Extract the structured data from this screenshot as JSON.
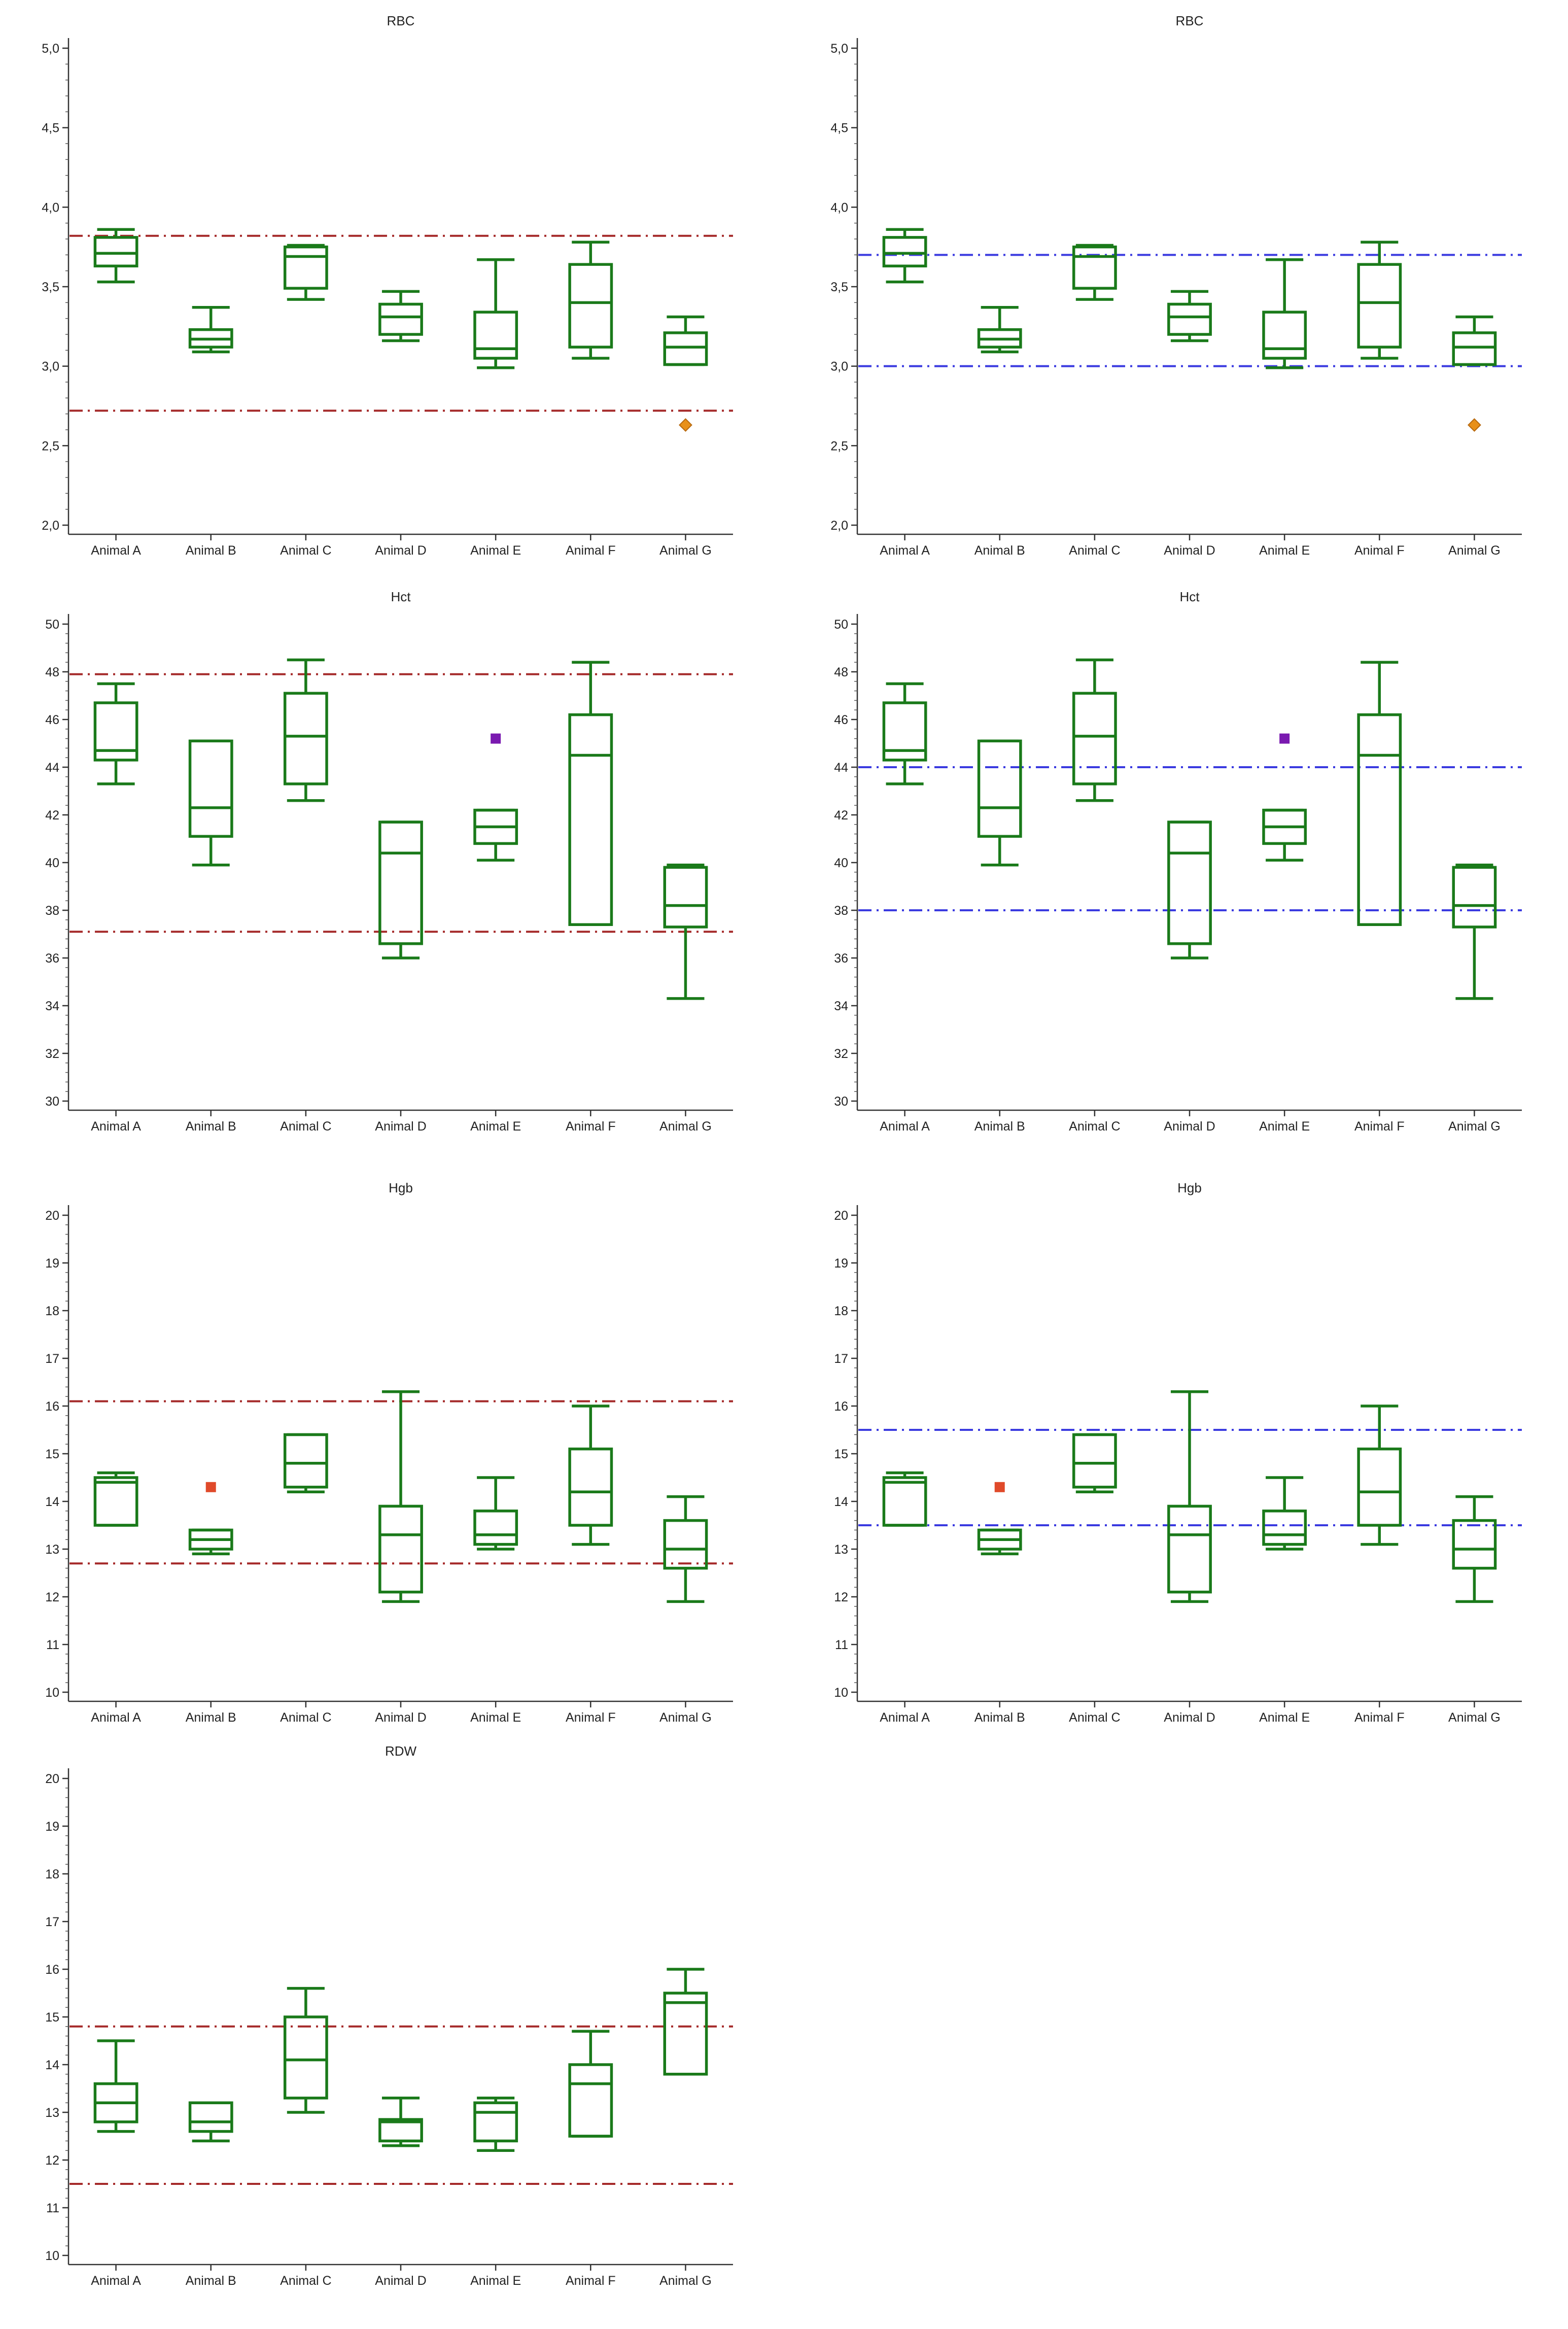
{
  "chart_data": [
    {
      "type": "box",
      "title": "RBC",
      "ylim": [
        2.0,
        5.0
      ],
      "yticks": [
        2.0,
        2.5,
        3.0,
        3.5,
        4.0,
        4.5,
        5.0
      ],
      "yticklabels": [
        "2,0",
        "2,5",
        "3,0",
        "3,5",
        "4,0",
        "4,5",
        "5,0"
      ],
      "categories": [
        "Animal A",
        "Animal B",
        "Animal C",
        "Animal D",
        "Animal E",
        "Animal F",
        "Animal G"
      ],
      "boxes": [
        {
          "min": 3.53,
          "q1": 3.63,
          "median": 3.71,
          "q3": 3.81,
          "max": 3.86
        },
        {
          "min": 3.09,
          "q1": 3.12,
          "median": 3.17,
          "q3": 3.23,
          "max": 3.37
        },
        {
          "min": 3.42,
          "q1": 3.49,
          "median": 3.69,
          "q3": 3.75,
          "max": 3.76
        },
        {
          "min": 3.16,
          "q1": 3.2,
          "median": 3.31,
          "q3": 3.39,
          "max": 3.47
        },
        {
          "min": 2.99,
          "q1": 3.05,
          "median": 3.11,
          "q3": 3.34,
          "max": 3.67
        },
        {
          "min": 3.05,
          "q1": 3.12,
          "median": 3.4,
          "q3": 3.64,
          "max": 3.78
        },
        {
          "min": 3.01,
          "q1": 3.01,
          "median": 3.12,
          "q3": 3.21,
          "max": 3.31
        }
      ],
      "outliers": [
        {
          "category": "Animal G",
          "value": 2.63,
          "color": "#e8901a",
          "shape": "diamond"
        }
      ],
      "reference_lines": [
        {
          "value": 3.82,
          "color": "#a52a2a"
        },
        {
          "value": 2.72,
          "color": "#a52a2a"
        }
      ]
    },
    {
      "type": "box",
      "title": "RBC",
      "ylim": [
        2.0,
        5.0
      ],
      "yticks": [
        2.0,
        2.5,
        3.0,
        3.5,
        4.0,
        4.5,
        5.0
      ],
      "yticklabels": [
        "2,0",
        "2,5",
        "3,0",
        "3,5",
        "4,0",
        "4,5",
        "5,0"
      ],
      "categories": [
        "Animal A",
        "Animal B",
        "Animal C",
        "Animal D",
        "Animal E",
        "Animal F",
        "Animal G"
      ],
      "boxes": [
        {
          "min": 3.53,
          "q1": 3.63,
          "median": 3.71,
          "q3": 3.81,
          "max": 3.86
        },
        {
          "min": 3.09,
          "q1": 3.12,
          "median": 3.17,
          "q3": 3.23,
          "max": 3.37
        },
        {
          "min": 3.42,
          "q1": 3.49,
          "median": 3.69,
          "q3": 3.75,
          "max": 3.76
        },
        {
          "min": 3.16,
          "q1": 3.2,
          "median": 3.31,
          "q3": 3.39,
          "max": 3.47
        },
        {
          "min": 2.99,
          "q1": 3.05,
          "median": 3.11,
          "q3": 3.34,
          "max": 3.67
        },
        {
          "min": 3.05,
          "q1": 3.12,
          "median": 3.4,
          "q3": 3.64,
          "max": 3.78
        },
        {
          "min": 3.01,
          "q1": 3.01,
          "median": 3.12,
          "q3": 3.21,
          "max": 3.31
        }
      ],
      "outliers": [
        {
          "category": "Animal G",
          "value": 2.63,
          "color": "#e8901a",
          "shape": "diamond"
        }
      ],
      "reference_lines": [
        {
          "value": 3.7,
          "color": "#3a3ae0"
        },
        {
          "value": 3.0,
          "color": "#3a3ae0"
        }
      ]
    },
    {
      "type": "box",
      "title": "Hct",
      "ylim": [
        30,
        50
      ],
      "yticks": [
        30,
        32,
        34,
        36,
        38,
        40,
        42,
        44,
        46,
        48,
        50
      ],
      "yticklabels": [
        "30",
        "32",
        "34",
        "36",
        "38",
        "40",
        "42",
        "44",
        "46",
        "48",
        "50"
      ],
      "categories": [
        "Animal A",
        "Animal B",
        "Animal C",
        "Animal D",
        "Animal E",
        "Animal F",
        "Animal G"
      ],
      "boxes": [
        {
          "min": 43.3,
          "q1": 44.3,
          "median": 44.7,
          "q3": 46.7,
          "max": 47.5
        },
        {
          "min": 39.9,
          "q1": 41.1,
          "median": 42.3,
          "q3": 45.1,
          "max": 45.1
        },
        {
          "min": 42.6,
          "q1": 43.3,
          "median": 45.3,
          "q3": 47.1,
          "max": 48.5
        },
        {
          "min": 36.0,
          "q1": 36.6,
          "median": 40.4,
          "q3": 41.7,
          "max": 41.7
        },
        {
          "min": 40.1,
          "q1": 40.8,
          "median": 41.5,
          "q3": 42.2,
          "max": 42.2
        },
        {
          "min": 37.4,
          "q1": 37.4,
          "median": 44.5,
          "q3": 46.2,
          "max": 48.4
        },
        {
          "min": 34.3,
          "q1": 37.3,
          "median": 38.2,
          "q3": 39.8,
          "max": 39.9
        }
      ],
      "outliers": [
        {
          "category": "Animal E",
          "value": 45.2,
          "color": "#7a1ab0",
          "shape": "square"
        }
      ],
      "reference_lines": [
        {
          "value": 47.9,
          "color": "#a52a2a"
        },
        {
          "value": 37.1,
          "color": "#a52a2a"
        }
      ]
    },
    {
      "type": "box",
      "title": "Hct",
      "ylim": [
        30,
        50
      ],
      "yticks": [
        30,
        32,
        34,
        36,
        38,
        40,
        42,
        44,
        46,
        48,
        50
      ],
      "yticklabels": [
        "30",
        "32",
        "34",
        "36",
        "38",
        "40",
        "42",
        "44",
        "46",
        "48",
        "50"
      ],
      "categories": [
        "Animal A",
        "Animal B",
        "Animal C",
        "Animal D",
        "Animal E",
        "Animal F",
        "Animal G"
      ],
      "boxes": [
        {
          "min": 43.3,
          "q1": 44.3,
          "median": 44.7,
          "q3": 46.7,
          "max": 47.5
        },
        {
          "min": 39.9,
          "q1": 41.1,
          "median": 42.3,
          "q3": 45.1,
          "max": 45.1
        },
        {
          "min": 42.6,
          "q1": 43.3,
          "median": 45.3,
          "q3": 47.1,
          "max": 48.5
        },
        {
          "min": 36.0,
          "q1": 36.6,
          "median": 40.4,
          "q3": 41.7,
          "max": 41.7
        },
        {
          "min": 40.1,
          "q1": 40.8,
          "median": 41.5,
          "q3": 42.2,
          "max": 42.2
        },
        {
          "min": 37.4,
          "q1": 37.4,
          "median": 44.5,
          "q3": 46.2,
          "max": 48.4
        },
        {
          "min": 34.3,
          "q1": 37.3,
          "median": 38.2,
          "q3": 39.8,
          "max": 39.9
        }
      ],
      "outliers": [
        {
          "category": "Animal E",
          "value": 45.2,
          "color": "#7a1ab0",
          "shape": "square"
        }
      ],
      "reference_lines": [
        {
          "value": 44.0,
          "color": "#3a3ae0"
        },
        {
          "value": 38.0,
          "color": "#3a3ae0"
        }
      ]
    },
    {
      "type": "box",
      "title": "Hgb",
      "ylim": [
        10,
        20
      ],
      "yticks": [
        10,
        11,
        12,
        13,
        14,
        15,
        16,
        17,
        18,
        19,
        20
      ],
      "yticklabels": [
        "10",
        "11",
        "12",
        "13",
        "14",
        "15",
        "16",
        "17",
        "18",
        "19",
        "20"
      ],
      "categories": [
        "Animal A",
        "Animal B",
        "Animal C",
        "Animal D",
        "Animal E",
        "Animal F",
        "Animal G"
      ],
      "boxes": [
        {
          "min": 13.5,
          "q1": 13.5,
          "median": 14.4,
          "q3": 14.5,
          "max": 14.6
        },
        {
          "min": 12.9,
          "q1": 13.0,
          "median": 13.2,
          "q3": 13.4,
          "max": 13.4
        },
        {
          "min": 14.2,
          "q1": 14.3,
          "median": 14.8,
          "q3": 15.4,
          "max": 15.4
        },
        {
          "min": 11.9,
          "q1": 12.1,
          "median": 13.3,
          "q3": 13.9,
          "max": 16.3
        },
        {
          "min": 13.0,
          "q1": 13.1,
          "median": 13.3,
          "q3": 13.8,
          "max": 14.5
        },
        {
          "min": 13.1,
          "q1": 13.5,
          "median": 14.2,
          "q3": 15.1,
          "max": 16.0
        },
        {
          "min": 11.9,
          "q1": 12.6,
          "median": 13.0,
          "q3": 13.6,
          "max": 14.1
        }
      ],
      "outliers": [
        {
          "category": "Animal B",
          "value": 14.3,
          "color": "#e04a2a",
          "shape": "square"
        }
      ],
      "reference_lines": [
        {
          "value": 16.1,
          "color": "#a52a2a"
        },
        {
          "value": 12.7,
          "color": "#a52a2a"
        }
      ]
    },
    {
      "type": "box",
      "title": "Hgb",
      "ylim": [
        10,
        20
      ],
      "yticks": [
        10,
        11,
        12,
        13,
        14,
        15,
        16,
        17,
        18,
        19,
        20
      ],
      "yticklabels": [
        "10",
        "11",
        "12",
        "13",
        "14",
        "15",
        "16",
        "17",
        "18",
        "19",
        "20"
      ],
      "categories": [
        "Animal A",
        "Animal B",
        "Animal C",
        "Animal D",
        "Animal E",
        "Animal F",
        "Animal G"
      ],
      "boxes": [
        {
          "min": 13.5,
          "q1": 13.5,
          "median": 14.4,
          "q3": 14.5,
          "max": 14.6
        },
        {
          "min": 12.9,
          "q1": 13.0,
          "median": 13.2,
          "q3": 13.4,
          "max": 13.4
        },
        {
          "min": 14.2,
          "q1": 14.3,
          "median": 14.8,
          "q3": 15.4,
          "max": 15.4
        },
        {
          "min": 11.9,
          "q1": 12.1,
          "median": 13.3,
          "q3": 13.9,
          "max": 16.3
        },
        {
          "min": 13.0,
          "q1": 13.1,
          "median": 13.3,
          "q3": 13.8,
          "max": 14.5
        },
        {
          "min": 13.1,
          "q1": 13.5,
          "median": 14.2,
          "q3": 15.1,
          "max": 16.0
        },
        {
          "min": 11.9,
          "q1": 12.6,
          "median": 13.0,
          "q3": 13.6,
          "max": 14.1
        }
      ],
      "outliers": [
        {
          "category": "Animal B",
          "value": 14.3,
          "color": "#e04a2a",
          "shape": "square"
        }
      ],
      "reference_lines": [
        {
          "value": 15.5,
          "color": "#3a3ae0"
        },
        {
          "value": 13.5,
          "color": "#3a3ae0"
        }
      ]
    },
    {
      "type": "box",
      "title": "RDW",
      "ylim": [
        10,
        20
      ],
      "yticks": [
        10,
        11,
        12,
        13,
        14,
        15,
        16,
        17,
        18,
        19,
        20
      ],
      "yticklabels": [
        "10",
        "11",
        "12",
        "13",
        "14",
        "15",
        "16",
        "17",
        "18",
        "19",
        "20"
      ],
      "categories": [
        "Animal A",
        "Animal B",
        "Animal C",
        "Animal D",
        "Animal E",
        "Animal F",
        "Animal G"
      ],
      "boxes": [
        {
          "min": 12.6,
          "q1": 12.8,
          "median": 13.2,
          "q3": 13.6,
          "max": 14.5
        },
        {
          "min": 12.4,
          "q1": 12.6,
          "median": 12.8,
          "q3": 13.2,
          "max": 13.2
        },
        {
          "min": 13.0,
          "q1": 13.3,
          "median": 14.1,
          "q3": 15.0,
          "max": 15.6
        },
        {
          "min": 12.3,
          "q1": 12.4,
          "median": 12.8,
          "q3": 12.85,
          "max": 13.3
        },
        {
          "min": 12.2,
          "q1": 12.4,
          "median": 13.0,
          "q3": 13.2,
          "max": 13.3
        },
        {
          "min": 12.5,
          "q1": 12.5,
          "median": 13.6,
          "q3": 14.0,
          "max": 14.7
        },
        {
          "min": 13.8,
          "q1": 13.8,
          "median": 15.3,
          "q3": 15.5,
          "max": 16.0
        }
      ],
      "outliers": [],
      "reference_lines": [
        {
          "value": 14.8,
          "color": "#a52a2a"
        },
        {
          "value": 11.5,
          "color": "#a52a2a"
        }
      ]
    }
  ]
}
